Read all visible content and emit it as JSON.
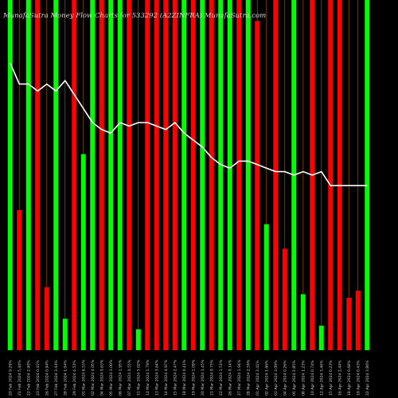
{
  "chart_data": {
    "type": "bar",
    "title": "MunafaSutra  Money Flow  Charts for 533292                                       (A2ZINFRA)  MunafaSutra.com",
    "categories": [
      "20 Feb 2024",
      "21 Feb 2024",
      "22 Feb 2024",
      "23 Feb 2024",
      "26 Feb 2024",
      "27 Feb 2024",
      "28 Feb 2024",
      "29 Feb 2024",
      "01 Mar 2024",
      "02 Mar 2024",
      "04 Mar 2024",
      "05 Mar 2024",
      "06 Mar 2024",
      "07 Mar 2024",
      "11 Mar 2024",
      "12 Mar 2024",
      "13 Mar 2024",
      "14 Mar 2024",
      "15 Mar 2024",
      "18 Mar 2024",
      "19 Mar 2024",
      "20 Mar 2024",
      "21 Mar 2024",
      "22 Mar 2024",
      "26 Mar 2024",
      "27 Mar 2024",
      "28 Mar 2024",
      "01 Apr 2024",
      "02 Apr 2024",
      "03 Apr 2024",
      "04 Apr 2024",
      "05 Apr 2024",
      "08 Apr 2024",
      "10 Apr 2024",
      "12 Apr 2024",
      "15 Apr 2024",
      "16 Apr 2024",
      "18 Apr 2024",
      "19 Apr 2024",
      "22 Apr 2024"
    ],
    "tick_labels": [
      "20 Feb 2024 9.26%",
      "21 Feb 2024 5.40%",
      "22 Feb 2024 2.90%",
      "23 Feb 2024 0.41%",
      "26 Feb 2024 0.94%",
      "27 Feb 2024 3.44%",
      "28 Feb 2024 1.04%",
      "29 Feb 2024 4.52%",
      "01 Mar 2024 6.53%",
      "02 Mar 2024 4.05%",
      "04 Mar 2024 0.63%",
      "05 Mar 2024 3.00%",
      "06 Mar 2024 1.95%",
      "07 Mar 2024 0.55%",
      "11 Mar 2024 5.02%",
      "12 Mar 2024 1.79%",
      "13 Mar 2024 3.64%",
      "14 Mar 2024 4.97%",
      "15 Mar 2024 2.47%",
      "18 Mar 2024 0.41%",
      "19 Mar 2024 1.09%",
      "20 Mar 2024 1.45%",
      "21 Mar 2024 0.75%",
      "22 Mar 2024 1.51%",
      "26 Mar 2024 0.14%",
      "27 Mar 2024 1.94%",
      "28 Mar 2024 2.59%",
      "01 Apr 2024 3.41%",
      "02 Apr 2024 1.66%",
      "03 Apr 2024 3.09%",
      "04 Apr 2024 0.26%",
      "05 Apr 2024 2.85%",
      "08 Apr 2024 1.23%",
      "10 Apr 2024 0.74%",
      "12 Apr 2024 3.46%",
      "15 Apr 2024 0.23%",
      "16 Apr 2024 2.44%",
      "18 Apr 2024 0.68%",
      "19 Apr 2024 0.43%",
      "22 Apr 2024 3.86%"
    ],
    "series": [
      {
        "type": "bar",
        "values": [
          100,
          40,
          100,
          100,
          18,
          100,
          9,
          100,
          56,
          100,
          100,
          100,
          100,
          100,
          6,
          100,
          100,
          100,
          100,
          100,
          100,
          100,
          100,
          100,
          100,
          100,
          100,
          94,
          36,
          100,
          29,
          100,
          16,
          100,
          7,
          100,
          100,
          15,
          17,
          100
        ],
        "colors": [
          "#00ff00",
          "#ff0000",
          "#00ff00",
          "#ff0000",
          "#ff0000",
          "#00ff00",
          "#00ff00",
          "#ff0000",
          "#00ff00",
          "#00ff00",
          "#ff0000",
          "#00ff00",
          "#00ff00",
          "#ff0000",
          "#00ff00",
          "#ff0000",
          "#ff0000",
          "#ff0000",
          "#ff0000",
          "#00ff00",
          "#ff0000",
          "#00ff00",
          "#ff0000",
          "#00ff00",
          "#00ff00",
          "#ff0000",
          "#00ff00",
          "#ff0000",
          "#00ff00",
          "#ff0000",
          "#ff0000",
          "#00ff00",
          "#00ff00",
          "#ff0000",
          "#00ff00",
          "#ff0000",
          "#ff0000",
          "#ff0000",
          "#ff0000",
          "#00ff00"
        ]
      },
      {
        "type": "line",
        "color": "#ffffff",
        "values": [
          82,
          76,
          76,
          74,
          76,
          74,
          77,
          73,
          69,
          65,
          63,
          62,
          65,
          64,
          65,
          65,
          64,
          63,
          65,
          62,
          60,
          58,
          55,
          53,
          52,
          54,
          54,
          53,
          52,
          51,
          51,
          50,
          51,
          50,
          51,
          47,
          47,
          47,
          47,
          47
        ]
      }
    ],
    "bar_ylim": [
      0,
      100
    ],
    "line_ylim": [
      0,
      100
    ],
    "grid": false,
    "colors": {
      "background": "#000000",
      "green": "#00ff00",
      "red": "#ff0000",
      "separator": "#8a4a00",
      "line": "#ffffff",
      "text": "#d8d8d8"
    }
  }
}
